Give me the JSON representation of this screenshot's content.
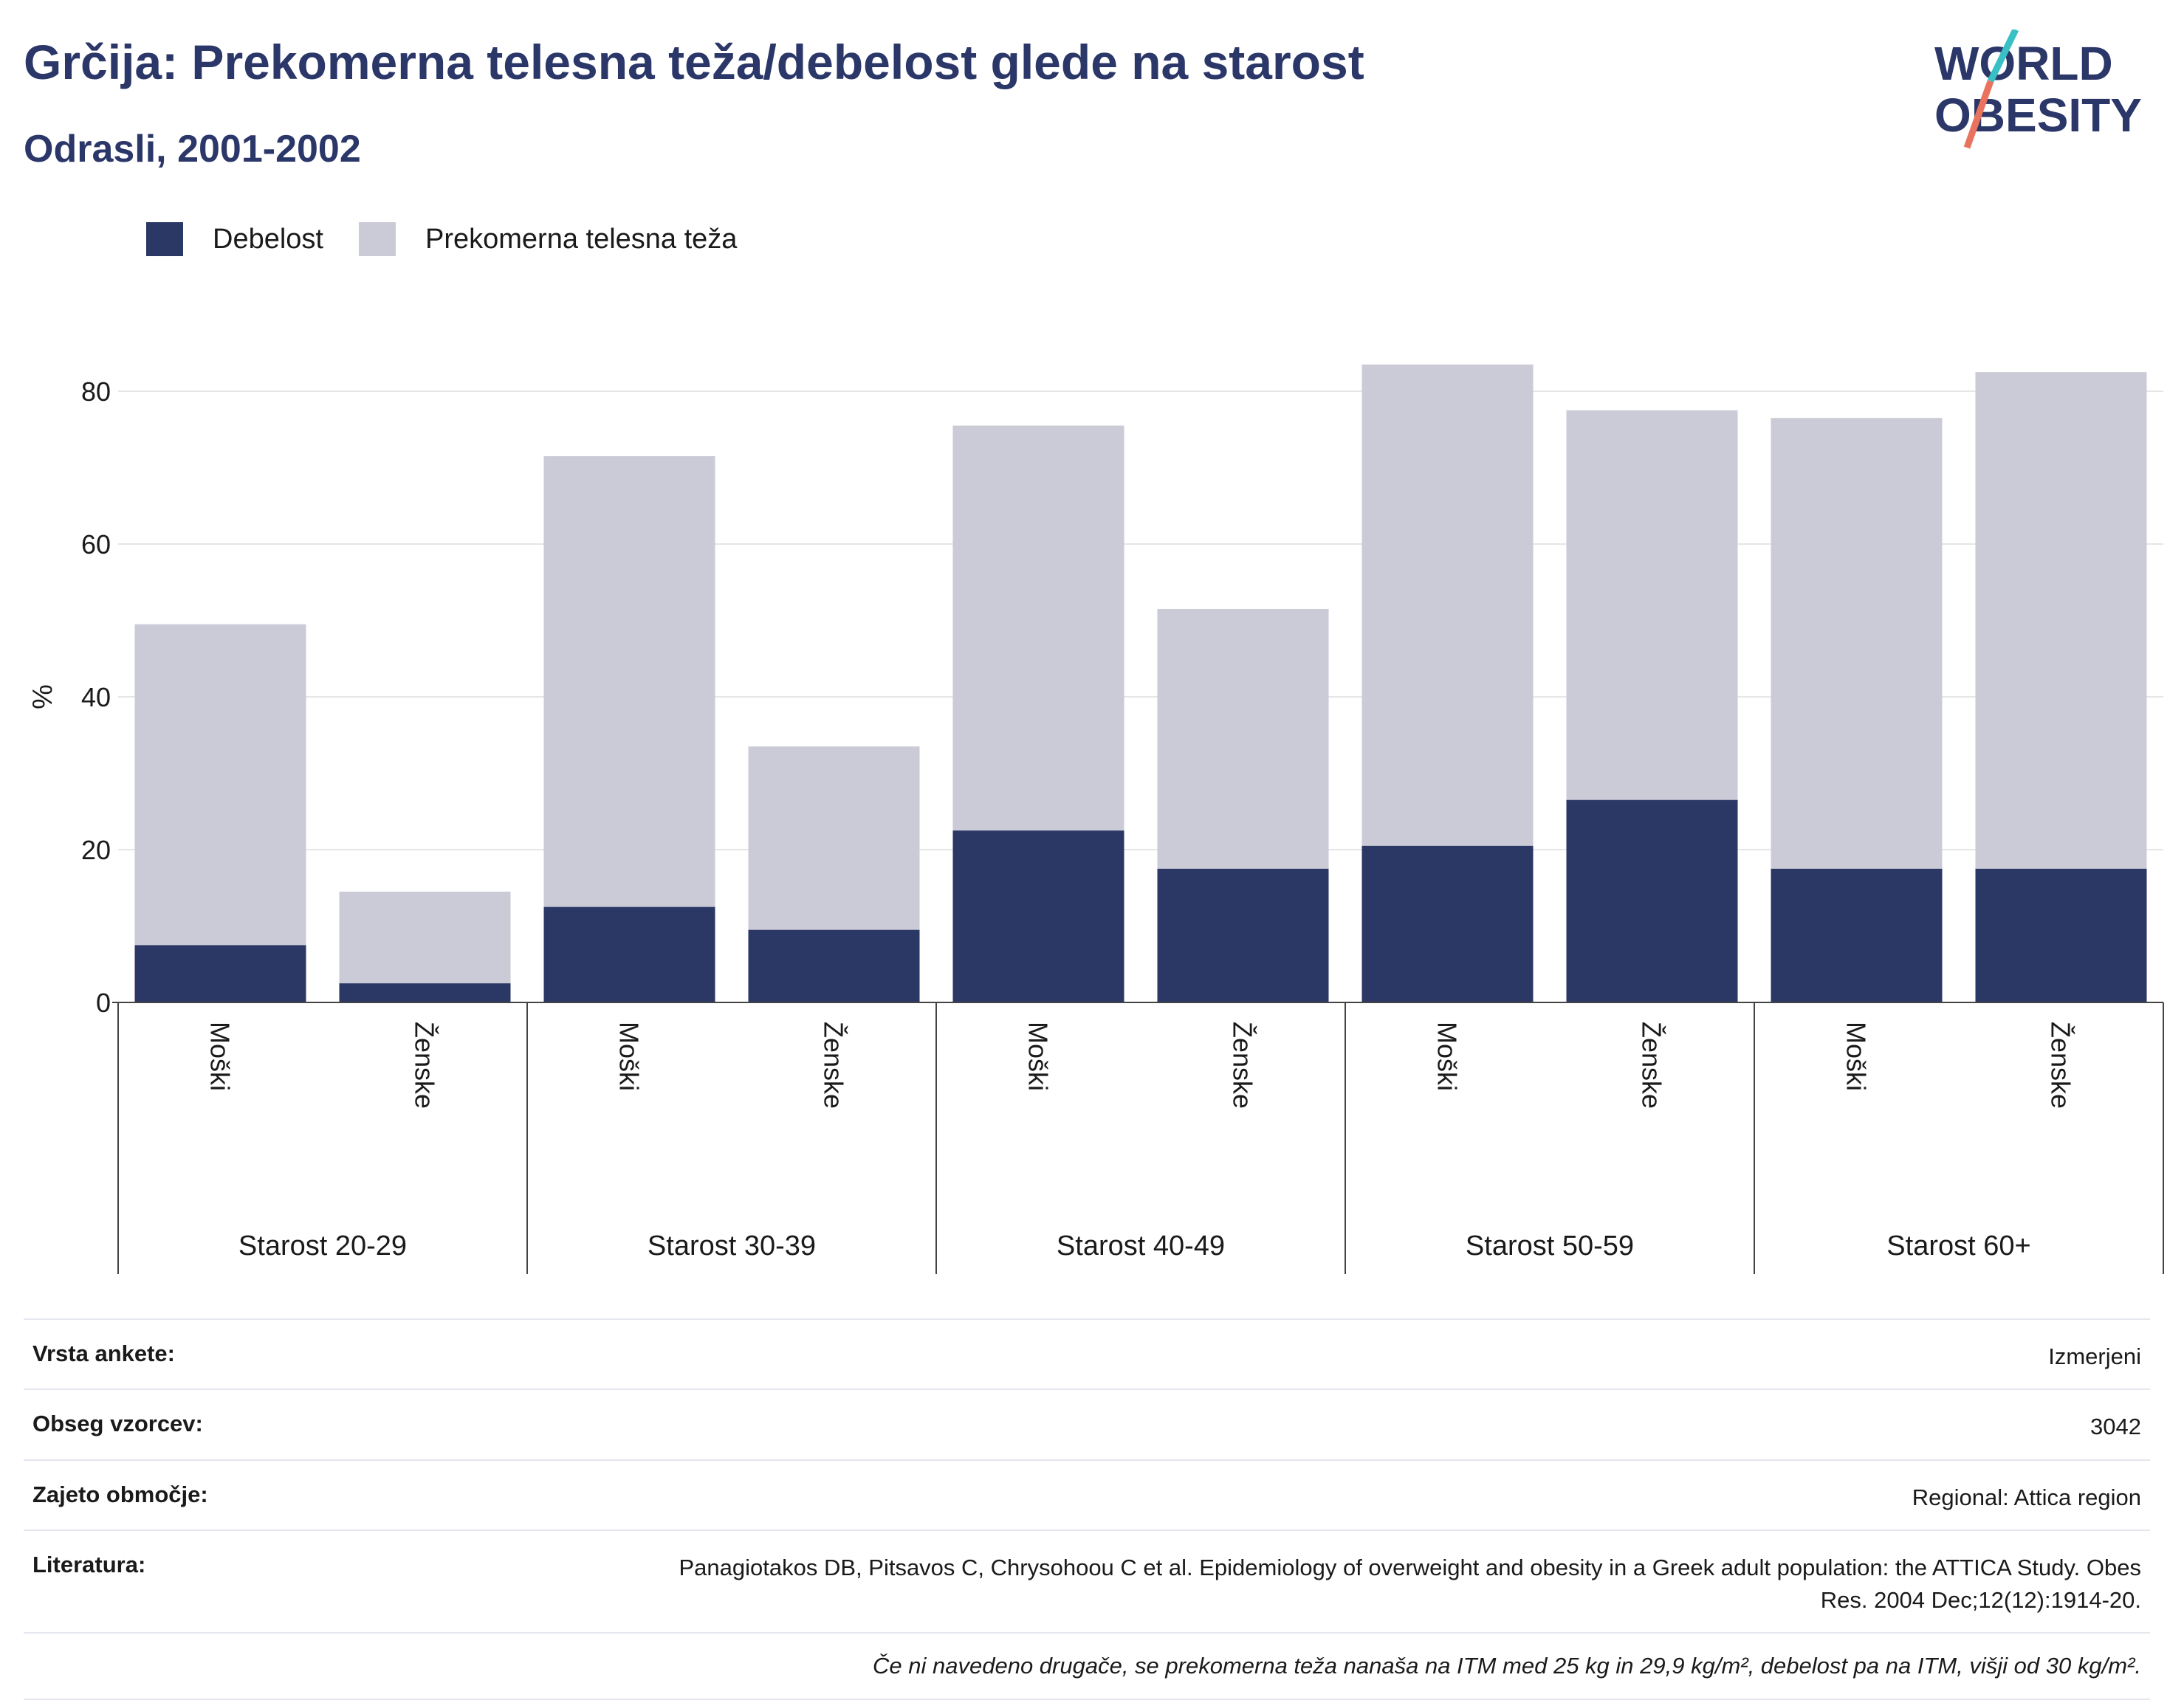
{
  "title": "Grčija: Prekomerna telesna teža/debelost glede na starost",
  "subtitle": "Odrasli, 2001-2002",
  "logo": {
    "line1": "WORLD",
    "line2": "OBESITY"
  },
  "colors": {
    "obesity": "#2b3765",
    "overweight": "#cacbd7",
    "title": "#2b3768",
    "logo_teal": "#39c0c4",
    "logo_coral": "#e9735e"
  },
  "legend": [
    {
      "label": "Debelost",
      "color": "#2b3765"
    },
    {
      "label": "Prekomerna telesna teža",
      "color": "#cacbd7"
    }
  ],
  "chart_data": {
    "type": "bar",
    "stacked": true,
    "ylabel": "%",
    "ylim": [
      0,
      90
    ],
    "yticks": [
      0,
      20,
      40,
      60,
      80
    ],
    "grid": true,
    "legend_position": "top-left",
    "groups": [
      {
        "label": "Starost 20-29",
        "categories": [
          "Moški",
          "Ženske"
        ]
      },
      {
        "label": "Starost 30-39",
        "categories": [
          "Moški",
          "Ženske"
        ]
      },
      {
        "label": "Starost 40-49",
        "categories": [
          "Moški",
          "Ženske"
        ]
      },
      {
        "label": "Starost 50-59",
        "categories": [
          "Moški",
          "Ženske"
        ]
      },
      {
        "label": "Starost 60+",
        "categories": [
          "Moški",
          "Ženske"
        ]
      }
    ],
    "series": [
      {
        "name": "Debelost",
        "values": [
          7.5,
          2.5,
          12.5,
          9.5,
          22.5,
          17.5,
          20.5,
          26.5,
          17.5,
          17.5
        ]
      },
      {
        "name": "Prekomerna telesna teža",
        "values": [
          42,
          12,
          59,
          24,
          53,
          34,
          63,
          51,
          59,
          65
        ]
      }
    ]
  },
  "info": [
    {
      "label": "Vrsta ankete:",
      "value": "Izmerjeni"
    },
    {
      "label": "Obseg vzorcev:",
      "value": "3042"
    },
    {
      "label": "Zajeto območje:",
      "value": "Regional: Attica region"
    },
    {
      "label": "Literatura:",
      "value": "Panagiotakos DB, Pitsavos C, Chrysohoou C et al. Epidemiology of overweight and obesity in a Greek adult population: the ATTICA Study. Obes Res. 2004 Dec;12(12):1914-20."
    }
  ],
  "note": "Če ni navedeno drugače, se prekomerna teža nanaša na ITM med 25 kg in 29,9 kg/m², debelost pa na ITM, višji od 30 kg/m²."
}
